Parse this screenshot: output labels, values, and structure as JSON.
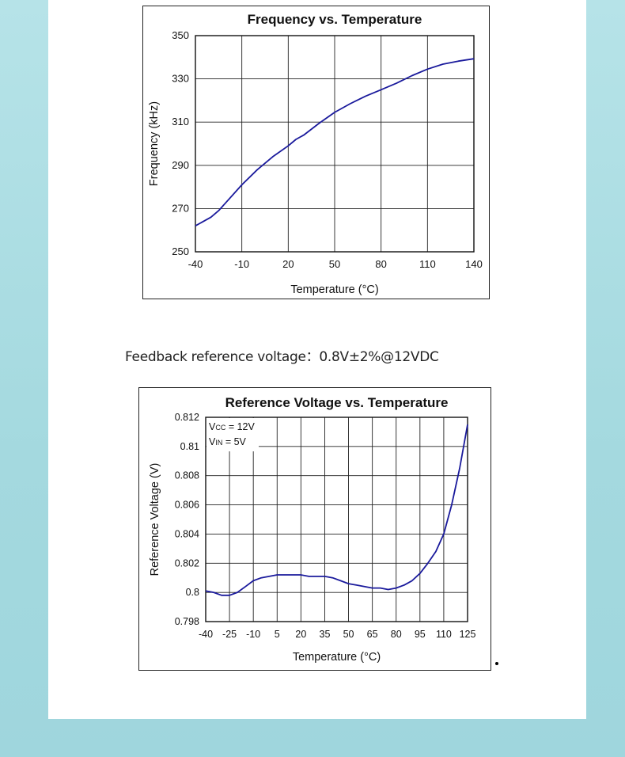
{
  "caption": "Feedback reference voltage：0.8V±2%@12VDC",
  "chart_data": [
    {
      "type": "line",
      "title": "Frequency vs. Temperature",
      "xlabel": "Temperature (°C)",
      "ylabel": "Frequency (kHz)",
      "xlim": [
        -40,
        140
      ],
      "ylim": [
        250,
        350
      ],
      "x_ticks": [
        -40,
        -10,
        20,
        50,
        80,
        110,
        140
      ],
      "y_ticks": [
        250,
        270,
        290,
        310,
        330,
        350
      ],
      "grid": true,
      "line_color": "#1a1a9c",
      "series": [
        {
          "x": [
            -40,
            -30,
            -25,
            -20,
            -10,
            0,
            10,
            20,
            25,
            30,
            40,
            50,
            60,
            70,
            80,
            90,
            100,
            110,
            120,
            130,
            140
          ],
          "y": [
            262,
            266,
            269,
            273,
            281,
            288,
            294,
            299,
            302,
            304,
            309.5,
            314.5,
            318.5,
            322,
            325,
            328,
            331.5,
            334.5,
            336.8,
            338.2,
            339.3
          ]
        }
      ]
    },
    {
      "type": "line",
      "title": "Reference Voltage vs. Temperature",
      "xlabel": "Temperature (°C)",
      "ylabel": "Reference Voltage (V)",
      "xlim": [
        -40,
        125
      ],
      "ylim": [
        0.798,
        0.812
      ],
      "x_ticks": [
        -40,
        -25,
        -10,
        5,
        20,
        35,
        50,
        65,
        80,
        95,
        110,
        125
      ],
      "y_ticks": [
        0.798,
        0.8,
        0.802,
        0.804,
        0.806,
        0.808,
        0.81,
        0.812
      ],
      "grid": true,
      "line_color": "#1a1a9c",
      "annotations": [
        {
          "main": "V",
          "sub": "CC",
          "rest": " = 12V"
        },
        {
          "main": "V",
          "sub": "IN",
          "rest": " = 5V"
        }
      ],
      "series": [
        {
          "x": [
            -40,
            -35,
            -30,
            -25,
            -20,
            -15,
            -10,
            -5,
            0,
            5,
            10,
            15,
            20,
            25,
            30,
            35,
            40,
            45,
            50,
            55,
            60,
            65,
            70,
            75,
            80,
            85,
            90,
            95,
            100,
            105,
            110,
            115,
            120,
            125
          ],
          "y": [
            0.8001,
            0.8,
            0.7998,
            0.7998,
            0.8,
            0.8004,
            0.8008,
            0.801,
            0.8011,
            0.8012,
            0.8012,
            0.8012,
            0.8012,
            0.8011,
            0.8011,
            0.8011,
            0.801,
            0.8008,
            0.8006,
            0.8005,
            0.8004,
            0.8003,
            0.8003,
            0.8002,
            0.8003,
            0.8005,
            0.8008,
            0.8013,
            0.802,
            0.8028,
            0.804,
            0.806,
            0.8085,
            0.8115
          ]
        }
      ]
    }
  ]
}
